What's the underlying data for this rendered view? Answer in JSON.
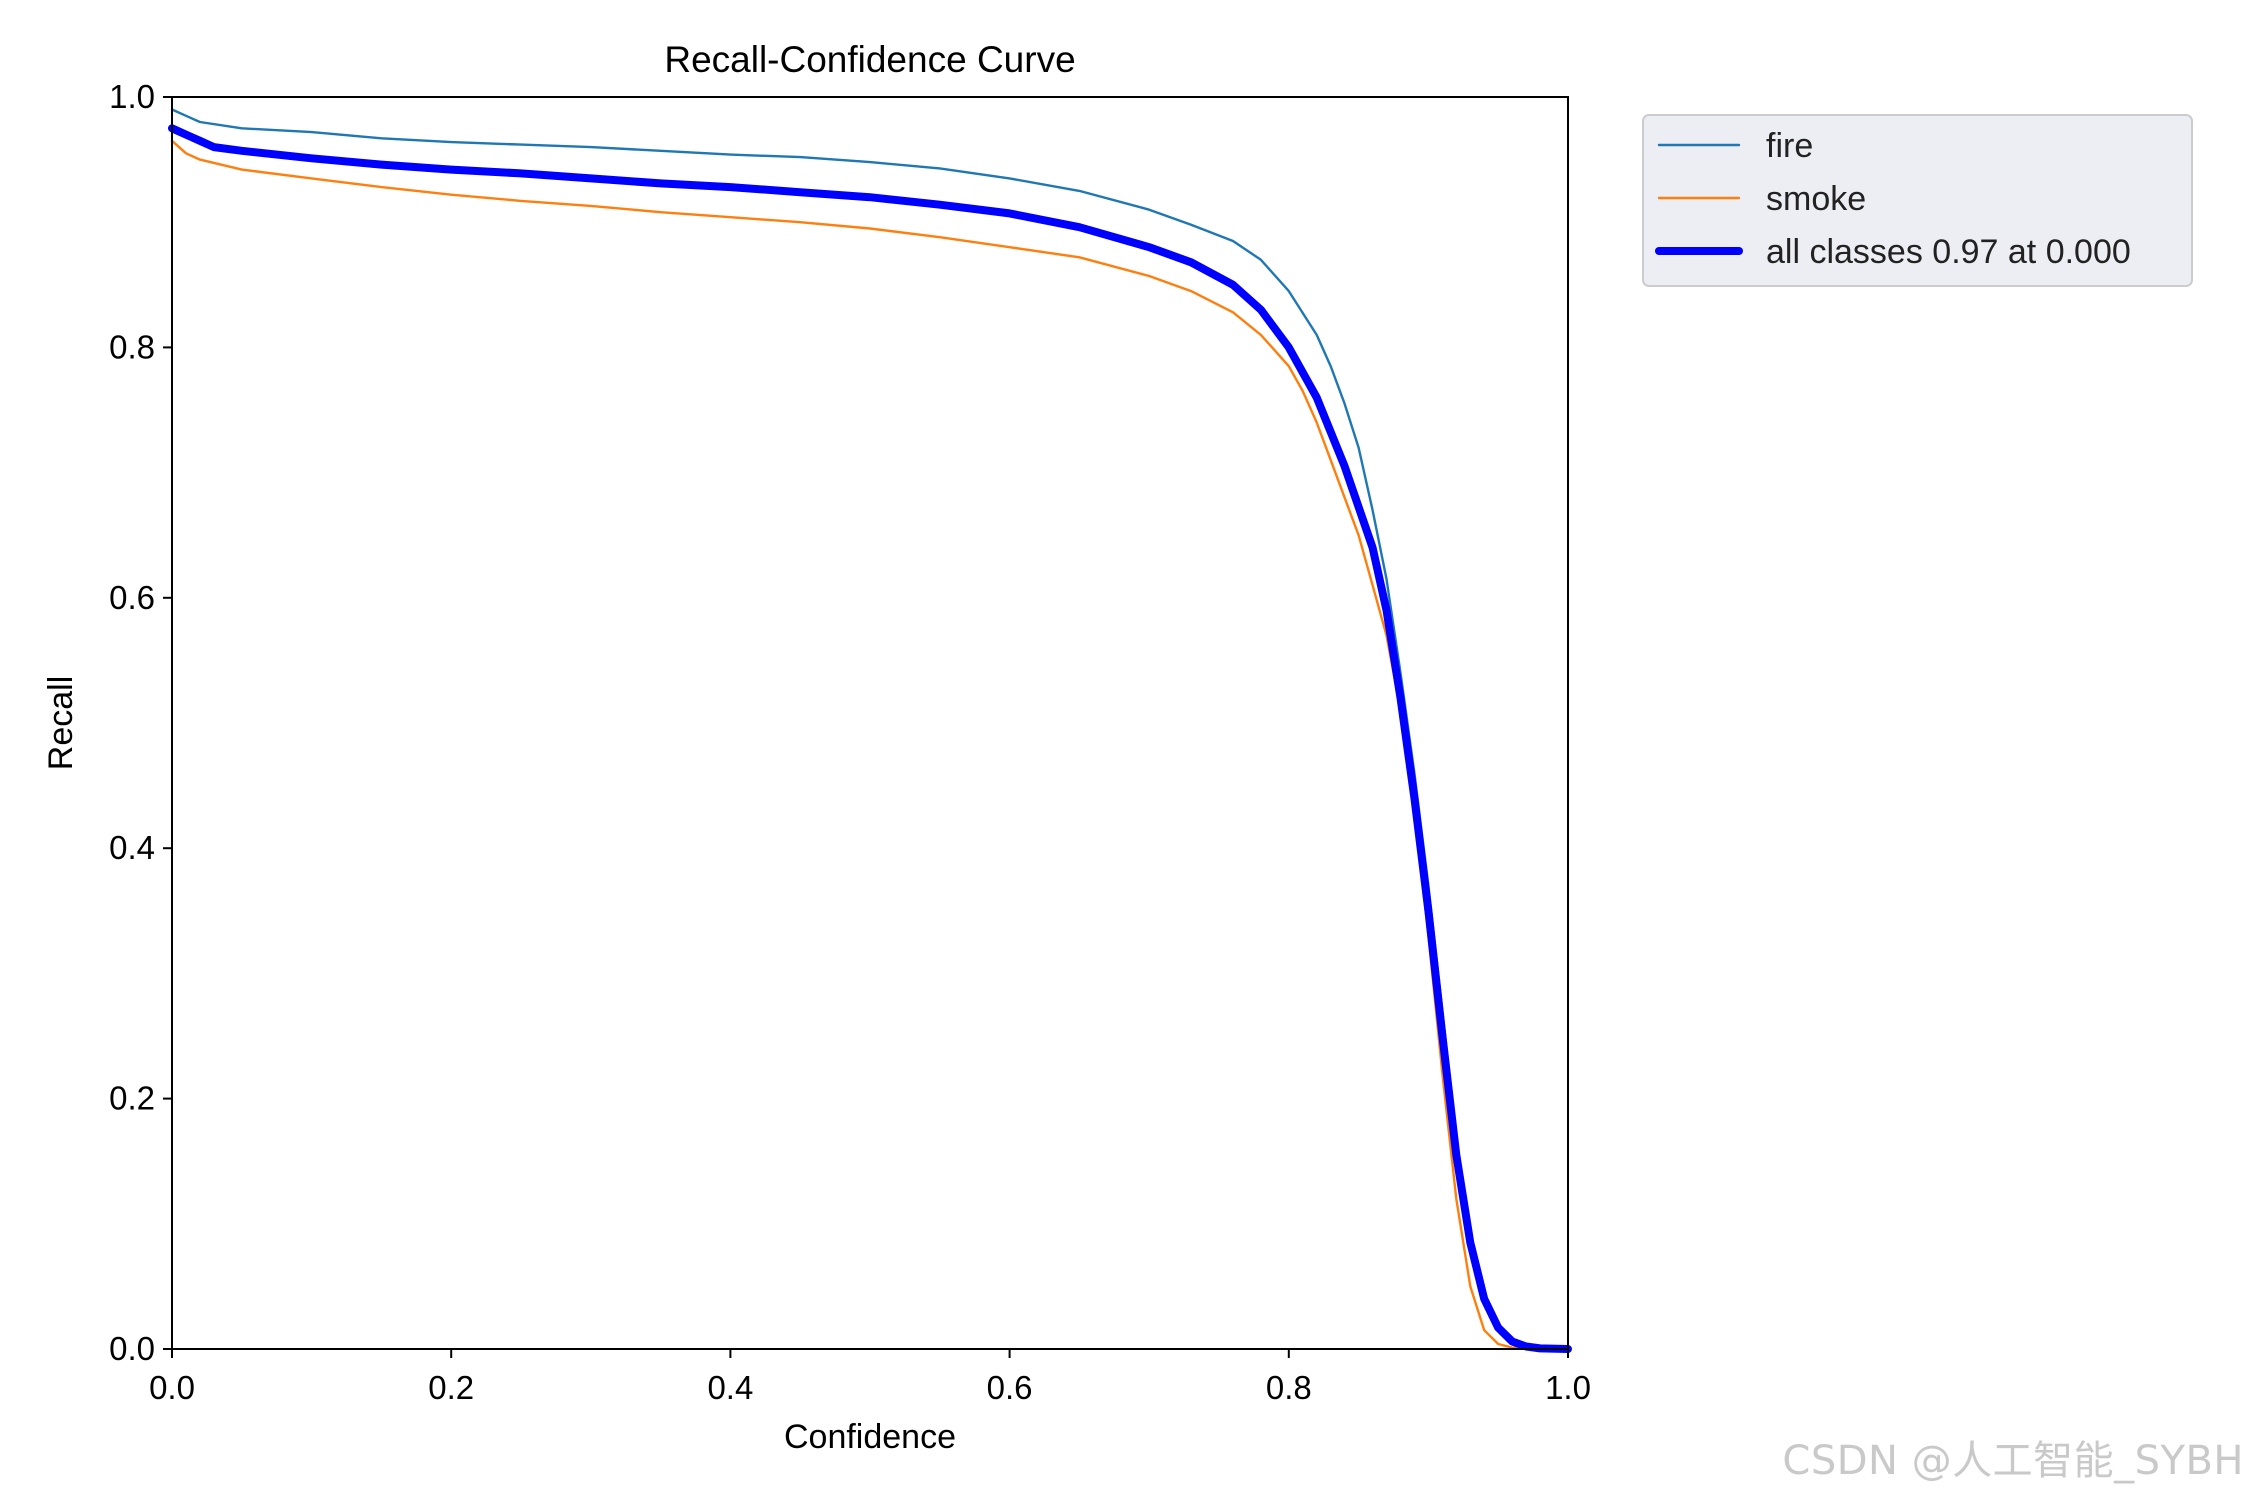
{
  "chart_data": {
    "type": "line",
    "title": "Recall-Confidence Curve",
    "xlabel": "Confidence",
    "ylabel": "Recall",
    "xlim": [
      0.0,
      1.0
    ],
    "ylim": [
      0.0,
      1.0
    ],
    "x_ticks": [
      "0.0",
      "0.2",
      "0.4",
      "0.6",
      "0.8",
      "1.0"
    ],
    "y_ticks": [
      "0.0",
      "0.2",
      "0.4",
      "0.6",
      "0.8",
      "1.0"
    ],
    "grid": false,
    "legend_placement": "outside-top-right",
    "series": [
      {
        "name": "fire",
        "color": "#1f77b4",
        "line": "thin",
        "points": [
          [
            0.0,
            0.99
          ],
          [
            0.01,
            0.985
          ],
          [
            0.02,
            0.98
          ],
          [
            0.05,
            0.975
          ],
          [
            0.1,
            0.972
          ],
          [
            0.15,
            0.967
          ],
          [
            0.2,
            0.964
          ],
          [
            0.25,
            0.962
          ],
          [
            0.3,
            0.96
          ],
          [
            0.35,
            0.957
          ],
          [
            0.4,
            0.954
          ],
          [
            0.45,
            0.952
          ],
          [
            0.5,
            0.948
          ],
          [
            0.55,
            0.943
          ],
          [
            0.6,
            0.935
          ],
          [
            0.65,
            0.925
          ],
          [
            0.7,
            0.91
          ],
          [
            0.73,
            0.898
          ],
          [
            0.76,
            0.885
          ],
          [
            0.78,
            0.87
          ],
          [
            0.8,
            0.845
          ],
          [
            0.82,
            0.81
          ],
          [
            0.83,
            0.785
          ],
          [
            0.84,
            0.755
          ],
          [
            0.85,
            0.72
          ],
          [
            0.86,
            0.67
          ],
          [
            0.87,
            0.615
          ],
          [
            0.88,
            0.54
          ],
          [
            0.89,
            0.46
          ],
          [
            0.9,
            0.37
          ],
          [
            0.91,
            0.27
          ],
          [
            0.92,
            0.17
          ],
          [
            0.93,
            0.09
          ],
          [
            0.94,
            0.04
          ],
          [
            0.95,
            0.015
          ],
          [
            0.96,
            0.005
          ],
          [
            0.97,
            0.001
          ],
          [
            1.0,
            0.0
          ]
        ]
      },
      {
        "name": "smoke",
        "color": "#ff7f0e",
        "line": "thin",
        "points": [
          [
            0.0,
            0.965
          ],
          [
            0.01,
            0.955
          ],
          [
            0.02,
            0.95
          ],
          [
            0.05,
            0.942
          ],
          [
            0.1,
            0.935
          ],
          [
            0.15,
            0.928
          ],
          [
            0.2,
            0.922
          ],
          [
            0.25,
            0.917
          ],
          [
            0.3,
            0.913
          ],
          [
            0.35,
            0.908
          ],
          [
            0.4,
            0.904
          ],
          [
            0.45,
            0.9
          ],
          [
            0.5,
            0.895
          ],
          [
            0.55,
            0.888
          ],
          [
            0.6,
            0.88
          ],
          [
            0.65,
            0.872
          ],
          [
            0.7,
            0.857
          ],
          [
            0.73,
            0.845
          ],
          [
            0.76,
            0.828
          ],
          [
            0.78,
            0.81
          ],
          [
            0.8,
            0.785
          ],
          [
            0.81,
            0.765
          ],
          [
            0.82,
            0.74
          ],
          [
            0.83,
            0.71
          ],
          [
            0.84,
            0.68
          ],
          [
            0.85,
            0.65
          ],
          [
            0.86,
            0.61
          ],
          [
            0.87,
            0.57
          ],
          [
            0.88,
            0.51
          ],
          [
            0.89,
            0.43
          ],
          [
            0.9,
            0.33
          ],
          [
            0.91,
            0.22
          ],
          [
            0.92,
            0.12
          ],
          [
            0.93,
            0.05
          ],
          [
            0.94,
            0.015
          ],
          [
            0.95,
            0.004
          ],
          [
            0.96,
            0.001
          ],
          [
            1.0,
            0.0
          ]
        ]
      },
      {
        "name": "all classes 0.97 at 0.000",
        "color": "#0000ff",
        "line": "thick",
        "points": [
          [
            0.0,
            0.975
          ],
          [
            0.01,
            0.97
          ],
          [
            0.02,
            0.965
          ],
          [
            0.03,
            0.96
          ],
          [
            0.05,
            0.957
          ],
          [
            0.1,
            0.951
          ],
          [
            0.15,
            0.946
          ],
          [
            0.2,
            0.942
          ],
          [
            0.25,
            0.939
          ],
          [
            0.3,
            0.935
          ],
          [
            0.35,
            0.931
          ],
          [
            0.4,
            0.928
          ],
          [
            0.45,
            0.924
          ],
          [
            0.5,
            0.92
          ],
          [
            0.55,
            0.914
          ],
          [
            0.6,
            0.907
          ],
          [
            0.65,
            0.896
          ],
          [
            0.7,
            0.88
          ],
          [
            0.73,
            0.868
          ],
          [
            0.76,
            0.85
          ],
          [
            0.78,
            0.83
          ],
          [
            0.8,
            0.8
          ],
          [
            0.82,
            0.76
          ],
          [
            0.84,
            0.705
          ],
          [
            0.86,
            0.64
          ],
          [
            0.87,
            0.59
          ],
          [
            0.88,
            0.52
          ],
          [
            0.89,
            0.44
          ],
          [
            0.9,
            0.35
          ],
          [
            0.91,
            0.25
          ],
          [
            0.92,
            0.155
          ],
          [
            0.93,
            0.085
          ],
          [
            0.94,
            0.04
          ],
          [
            0.95,
            0.017
          ],
          [
            0.96,
            0.006
          ],
          [
            0.97,
            0.002
          ],
          [
            0.98,
            0.0005
          ],
          [
            1.0,
            0.0
          ]
        ]
      }
    ]
  },
  "watermark": "CSDN @人工智能_SYBH"
}
